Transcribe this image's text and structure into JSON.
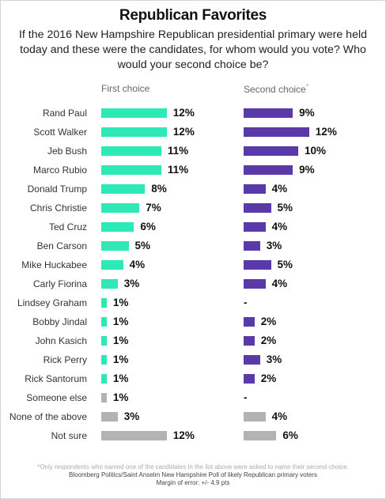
{
  "chart_data": {
    "type": "bar",
    "orientation": "horizontal",
    "title": "Republican Favorites",
    "subtitle": "If the 2016 New Hampshire Republican presidential primary were held today and these were the candidates, for whom would you vote? Who would your second choice be?",
    "categories": [
      "Rand Paul",
      "Scott Walker",
      "Jeb Bush",
      "Marco Rubio",
      "Donald Trump",
      "Chris Christie",
      "Ted Cruz",
      "Ben Carson",
      "Mike Huckabee",
      "Carly Fiorina",
      "Lindsey Graham",
      "Bobby Jindal",
      "John Kasich",
      "Rick Perry",
      "Rick Santorum",
      "Someone else",
      "None of the above",
      "Not sure"
    ],
    "series": [
      {
        "name": "First choice",
        "values": [
          12,
          12,
          11,
          11,
          8,
          7,
          6,
          5,
          4,
          3,
          1,
          1,
          1,
          1,
          1,
          1,
          3,
          12
        ],
        "labels": [
          "12%",
          "12%",
          "11%",
          "11%",
          "8%",
          "7%",
          "6%",
          "5%",
          "4%",
          "3%",
          "1%",
          "1%",
          "1%",
          "1%",
          "1%",
          "1%",
          "3%",
          "12%"
        ]
      },
      {
        "name": "Second choice",
        "name_marker": "*",
        "values": [
          9,
          12,
          10,
          9,
          4,
          5,
          4,
          3,
          5,
          4,
          null,
          2,
          2,
          3,
          2,
          null,
          4,
          6
        ],
        "labels": [
          "9%",
          "12%",
          "10%",
          "9%",
          "4%",
          "5%",
          "4%",
          "3%",
          "5%",
          "4%",
          "-",
          "2%",
          "2%",
          "3%",
          "2%",
          "-",
          "4%",
          "6%"
        ]
      }
    ],
    "colors": {
      "first_candidate": "#2ee8b6",
      "second_candidate": "#5a3aa8",
      "other": "#b3b3b3"
    },
    "grey_categories": [
      "Someone else",
      "None of the above",
      "Not sure"
    ],
    "grid": false,
    "legend": "column headers above each series"
  },
  "footnotes": [
    "*Only respondents who named one of the candidates in the list above were asked to name their second choice.",
    "Bloomberg Politics/Saint Anselm New Hampshire Poll of likely Republican primary voters",
    "Margin of error: +/- 4.9 pts"
  ]
}
